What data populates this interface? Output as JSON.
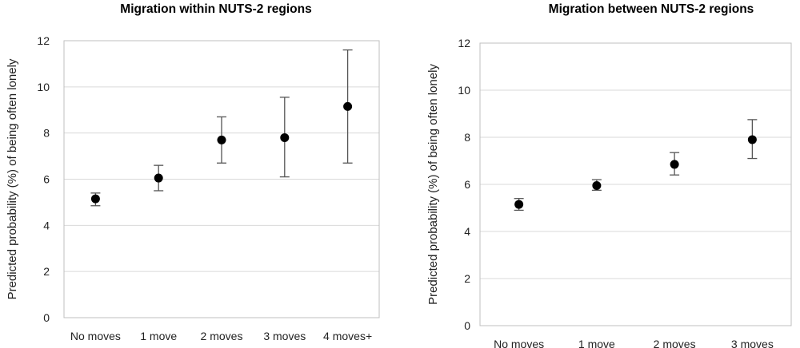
{
  "chart_data": [
    {
      "type": "scatter",
      "title": "Migration within NUTS-2 regions",
      "ylabel": "Predicted probability (%) of being often lonely",
      "xlabel": "",
      "categories": [
        "No moves",
        "1 move",
        "2 moves",
        "3 moves",
        "4 moves+"
      ],
      "ylim": [
        0,
        12
      ],
      "yticks": [
        "0",
        "2",
        "4",
        "6",
        "8",
        "10",
        "12"
      ],
      "grid": true,
      "series": [
        {
          "values": [
            5.15,
            6.05,
            7.7,
            7.8,
            9.15
          ],
          "ci_low": [
            4.85,
            5.5,
            6.7,
            6.1,
            6.7
          ],
          "ci_high": [
            5.4,
            6.6,
            8.7,
            9.55,
            11.6
          ]
        }
      ]
    },
    {
      "type": "scatter",
      "title": "Migration between NUTS-2 regions",
      "ylabel": "Predicted probability  (%) of being often lonely",
      "xlabel": "",
      "categories": [
        "No moves",
        "1 move",
        "2 moves",
        "3 moves"
      ],
      "ylim": [
        0,
        12
      ],
      "yticks": [
        "0",
        "2",
        "4",
        "6",
        "8",
        "10",
        "12"
      ],
      "grid": true,
      "series": [
        {
          "values": [
            5.15,
            5.95,
            6.85,
            7.9
          ],
          "ci_low": [
            4.9,
            5.75,
            6.4,
            7.1
          ],
          "ci_high": [
            5.4,
            6.2,
            7.35,
            8.75
          ]
        }
      ]
    }
  ]
}
